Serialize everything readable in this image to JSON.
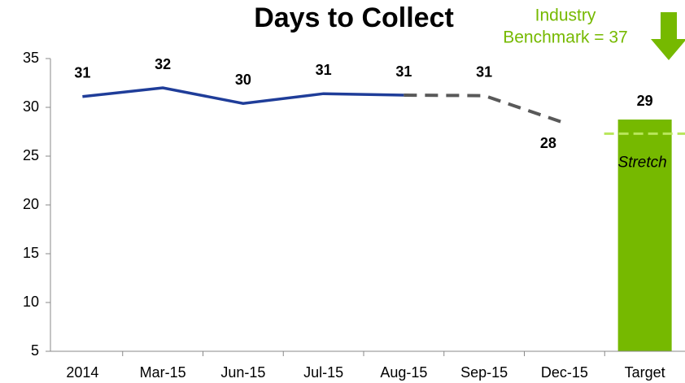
{
  "chart_data": {
    "type": "line",
    "title": "Days to Collect",
    "categories": [
      "2014",
      "Mar-15",
      "Jun-15",
      "Jul-15",
      "Aug-15",
      "Sep-15",
      "Dec-15",
      "Target"
    ],
    "series": [
      {
        "color": "#1f3d99",
        "style": "solid",
        "values": [
          31.1,
          32,
          30.4,
          31.4,
          31.25,
          null,
          null,
          null
        ],
        "value_labels": [
          "31",
          "32",
          "30",
          "31",
          "31",
          null,
          null,
          null
        ]
      },
      {
        "color": "#595959",
        "style": "dashed",
        "values": [
          null,
          null,
          null,
          null,
          31.25,
          31.2,
          28.4,
          null
        ],
        "value_labels": [
          null,
          null,
          null,
          null,
          null,
          "31",
          "28",
          null
        ]
      }
    ],
    "target": {
      "value": 28.75,
      "value_label": "29",
      "color": "#76b900"
    },
    "stretch": {
      "value": 27.3,
      "label": "Stretch",
      "color": "#b8e65a"
    },
    "annotation": {
      "lines": [
        "Industry",
        "Benchmark = 37"
      ],
      "color": "#76b900"
    },
    "ylim": [
      5,
      35
    ],
    "yticks": [
      5,
      10,
      15,
      20,
      25,
      30,
      35
    ],
    "grid": false
  }
}
